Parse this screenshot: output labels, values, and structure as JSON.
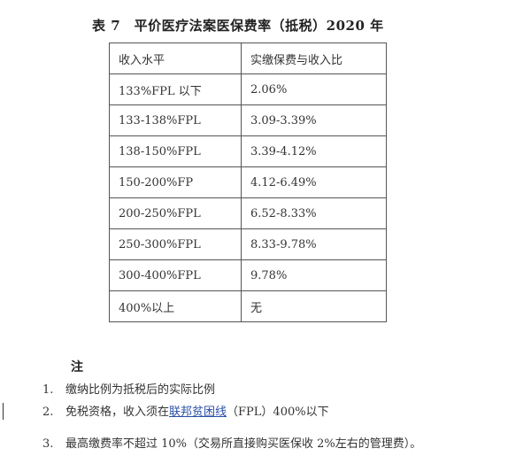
{
  "title": "表 7　平价医疗法案医保费率（抵税）2020 年",
  "table": {
    "headers": [
      "收入水平",
      "实缴保费与收入比"
    ],
    "rows": [
      [
        "133%FPL 以下",
        "2.06%"
      ],
      [
        "133-138%FPL",
        "3.09-3.39%"
      ],
      [
        "138-150%FPL",
        "3.39-4.12%"
      ],
      [
        "150-200%FP",
        "4.12-6.49%"
      ],
      [
        "200-250%FPL",
        "6.52-8.33%"
      ],
      [
        "250-300%FPL",
        "8.33-9.78%"
      ],
      [
        "300-400%FPL",
        "9.78%"
      ],
      [
        "400%以上",
        "无"
      ]
    ]
  },
  "notes": {
    "heading": "注",
    "items": [
      {
        "num": "1.",
        "text": "缴纳比例为抵税后的实际比例"
      },
      {
        "num": "2.",
        "pre": "免税资格，收入须在",
        "link": "联邦贫困线",
        "post": "（FPL）400%以下"
      },
      {
        "num": "3.",
        "text": "最高缴费率不超过 10%（交易所直接购买医保收 2%左右的管理费）。"
      }
    ]
  },
  "colors": {
    "link": "#2a4fa8"
  }
}
